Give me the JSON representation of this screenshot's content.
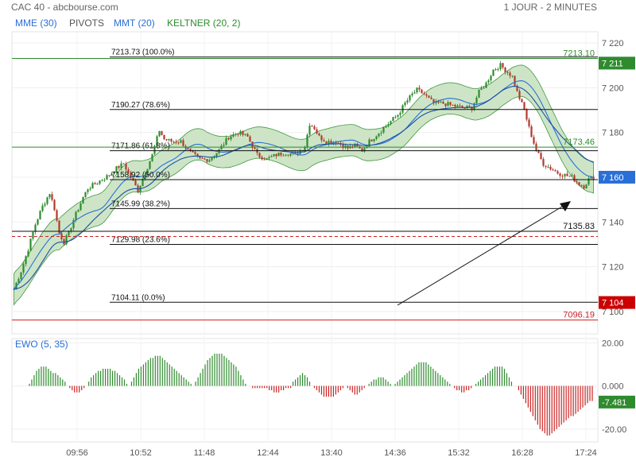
{
  "header": {
    "title": "CAC 40 - abcbourse.com",
    "period": "1 JOUR - 2 MINUTES"
  },
  "legend": {
    "mme": "MME (30)",
    "pivots": "PIVOTS",
    "mmt": "MMT (20)",
    "keltner": "KELTNER (20, 2)",
    "mme_color": "#2a6fd6",
    "mmt_color": "#2a6fd6",
    "keltner_color": "#2e8b2e"
  },
  "ewo_label": "EWO (5, 35)",
  "chart_data": [
    {
      "type": "candlestick",
      "title": "CAC 40",
      "ylim": [
        7090,
        7225
      ],
      "y_ticks": [
        "7 220",
        "7 200",
        "7 180",
        "7 160",
        "7 140",
        "7 120",
        "7 100"
      ],
      "y_tick_values": [
        7220,
        7200,
        7180,
        7160,
        7140,
        7120,
        7100
      ],
      "x_ticks": [
        "09:56",
        "10:52",
        "11:48",
        "12:44",
        "13:40",
        "14:36",
        "15:32",
        "16:28",
        "17:24"
      ],
      "price_path": [
        [
          0,
          7110
        ],
        [
          3,
          7118
        ],
        [
          6,
          7128
        ],
        [
          9,
          7139
        ],
        [
          12,
          7147
        ],
        [
          15,
          7153
        ],
        [
          17,
          7146
        ],
        [
          19,
          7135
        ],
        [
          21,
          7131
        ],
        [
          23,
          7135
        ],
        [
          25,
          7141
        ],
        [
          27,
          7146
        ],
        [
          29,
          7151
        ],
        [
          31,
          7155
        ],
        [
          34,
          7157
        ],
        [
          37,
          7159
        ],
        [
          40,
          7161
        ],
        [
          43,
          7164
        ],
        [
          46,
          7166
        ],
        [
          48,
          7162
        ],
        [
          50,
          7158
        ],
        [
          52,
          7154
        ],
        [
          55,
          7162
        ],
        [
          58,
          7170
        ],
        [
          61,
          7181
        ],
        [
          63,
          7177
        ],
        [
          66,
          7176
        ],
        [
          70,
          7176
        ],
        [
          74,
          7171
        ],
        [
          78,
          7168
        ],
        [
          82,
          7168
        ],
        [
          86,
          7172
        ],
        [
          90,
          7178
        ],
        [
          94,
          7180
        ],
        [
          98,
          7178
        ],
        [
          102,
          7170
        ],
        [
          106,
          7168
        ],
        [
          110,
          7170
        ],
        [
          114,
          7171
        ],
        [
          118,
          7170
        ],
        [
          122,
          7174
        ],
        [
          124,
          7184
        ],
        [
          126,
          7182
        ],
        [
          128,
          7178
        ],
        [
          131,
          7176
        ],
        [
          135,
          7176
        ],
        [
          140,
          7173
        ],
        [
          143,
          7174
        ],
        [
          146,
          7172
        ],
        [
          149,
          7176
        ],
        [
          153,
          7180
        ],
        [
          157,
          7184
        ],
        [
          161,
          7188
        ],
        [
          164,
          7193
        ],
        [
          167,
          7197
        ],
        [
          169,
          7199
        ],
        [
          172,
          7197
        ],
        [
          176,
          7193
        ],
        [
          180,
          7193
        ],
        [
          184,
          7192
        ],
        [
          188,
          7191
        ],
        [
          192,
          7191
        ],
        [
          195,
          7198
        ],
        [
          198,
          7202
        ],
        [
          201,
          7208
        ],
        [
          204,
          7210
        ],
        [
          206,
          7208
        ],
        [
          209,
          7205
        ],
        [
          211,
          7198
        ],
        [
          214,
          7190
        ],
        [
          216,
          7182
        ],
        [
          219,
          7172
        ],
        [
          222,
          7166
        ],
        [
          225,
          7164
        ],
        [
          228,
          7162
        ],
        [
          231,
          7161
        ],
        [
          234,
          7160
        ],
        [
          237,
          7157
        ],
        [
          239,
          7156
        ],
        [
          241,
          7159
        ],
        [
          243,
          7160
        ]
      ],
      "candle_count": 244,
      "keltner_half_width": 7,
      "overlays": [
        {
          "label": "7213.73",
          "pct": "(100.0%)",
          "value": 7213.73,
          "color": "#111111"
        },
        {
          "label": "7190.27",
          "pct": "(78.6%)",
          "value": 7190.27,
          "color": "#111111"
        },
        {
          "label": "7171.86",
          "pct": "(61.8%)",
          "value": 7171.86,
          "color": "#111111"
        },
        {
          "label": "7158.92",
          "pct": "(50.0%)",
          "value": 7158.92,
          "color": "#111111"
        },
        {
          "label": "7145.99",
          "pct": "(38.2%)",
          "value": 7145.99,
          "color": "#111111"
        },
        {
          "label": "7129.98",
          "pct": "(23.6%)",
          "value": 7129.98,
          "color": "#111111"
        },
        {
          "label": "7104.11",
          "pct": "(0.0%)",
          "value": 7104.11,
          "color": "#111111"
        }
      ],
      "pivot_lines": [
        {
          "label": "7213.10",
          "value": 7213.1,
          "color": "#2e8b2e"
        },
        {
          "label": "7173.46",
          "value": 7173.46,
          "color": "#2e8b2e"
        },
        {
          "label": "7135.83",
          "value": 7135.83,
          "color": "#111111"
        },
        {
          "label": "7096.19",
          "value": 7096.19,
          "color": "#cc2222"
        }
      ],
      "dashed_line": {
        "value": 7133.5,
        "color": "#cc2222"
      },
      "price_tags": [
        {
          "label": "7 211",
          "value": 7211,
          "color": "#2e8b2e"
        },
        {
          "label": "7 160",
          "value": 7160,
          "color": "#2a6fd6"
        },
        {
          "label": "7 104",
          "value": 7104,
          "color": "#cc0000"
        }
      ],
      "candle_up_color": "#2e8b2e",
      "candle_down_color": "#b03a2e",
      "band_fill": "#c8e3c0",
      "band_stroke": "#2e8b2e"
    },
    {
      "type": "bar",
      "title": "EWO (5, 35)",
      "ylim": [
        -26,
        22
      ],
      "y_ticks": [
        "20.00",
        "0.000",
        "-20.00"
      ],
      "y_tick_values": [
        20,
        0,
        -20
      ],
      "current_value": "-7.481",
      "positive_color": "#2e8b2e",
      "negative_color": "#cc2222",
      "values": [
        0,
        1,
        3,
        5,
        7,
        8,
        9,
        9,
        9,
        8,
        7,
        6,
        6,
        5,
        4,
        3,
        2,
        0,
        -1,
        -2,
        -3,
        -3,
        -3,
        -2,
        -1,
        0,
        2,
        4,
        5,
        6,
        7,
        7,
        8,
        8,
        8,
        8,
        7,
        7,
        6,
        5,
        4,
        3,
        1,
        0,
        2,
        4,
        6,
        8,
        9,
        10,
        11,
        12,
        13,
        13,
        14,
        14,
        14,
        13,
        12,
        11,
        10,
        9,
        8,
        7,
        6,
        5,
        4,
        3,
        2,
        1,
        0,
        2,
        4,
        6,
        8,
        10,
        12,
        13,
        14,
        15,
        15,
        15,
        15,
        14,
        13,
        12,
        11,
        10,
        9,
        7,
        5,
        3,
        1,
        0,
        0,
        -1,
        -1,
        -1,
        -1,
        -1,
        -1,
        -1,
        -2,
        -2,
        -3,
        -3,
        -3,
        -2,
        -2,
        -1,
        -1,
        -1,
        2,
        3,
        4,
        5,
        6,
        5,
        4,
        2,
        0,
        -1,
        -2,
        -3,
        -4,
        -5,
        -5,
        -5,
        -5,
        -5,
        -4,
        -3,
        -2,
        -1,
        0,
        -1,
        -2,
        -3,
        -4,
        -4,
        -3,
        -2,
        -1,
        0,
        1,
        2,
        3,
        3,
        4,
        4,
        4,
        3,
        2,
        1,
        0,
        1,
        2,
        3,
        4,
        5,
        6,
        7,
        8,
        9,
        10,
        11,
        11,
        11,
        11,
        10,
        9,
        8,
        7,
        6,
        5,
        4,
        3,
        2,
        1,
        0,
        -1,
        -2,
        -2,
        -3,
        -3,
        -2,
        -2,
        -1,
        0,
        1,
        2,
        3,
        4,
        5,
        6,
        7,
        8,
        9,
        9,
        9,
        9,
        8,
        6,
        4,
        2,
        0,
        0,
        -2,
        -4,
        -6,
        -8,
        -10,
        -12,
        -14,
        -16,
        -18,
        -20,
        -21,
        -22,
        -23,
        -23,
        -22,
        -21,
        -20,
        -19,
        -18,
        -17,
        -16,
        -15,
        -14,
        -14,
        -13,
        -12,
        -11,
        -10,
        -9,
        -8,
        -7,
        -7
      ]
    }
  ]
}
